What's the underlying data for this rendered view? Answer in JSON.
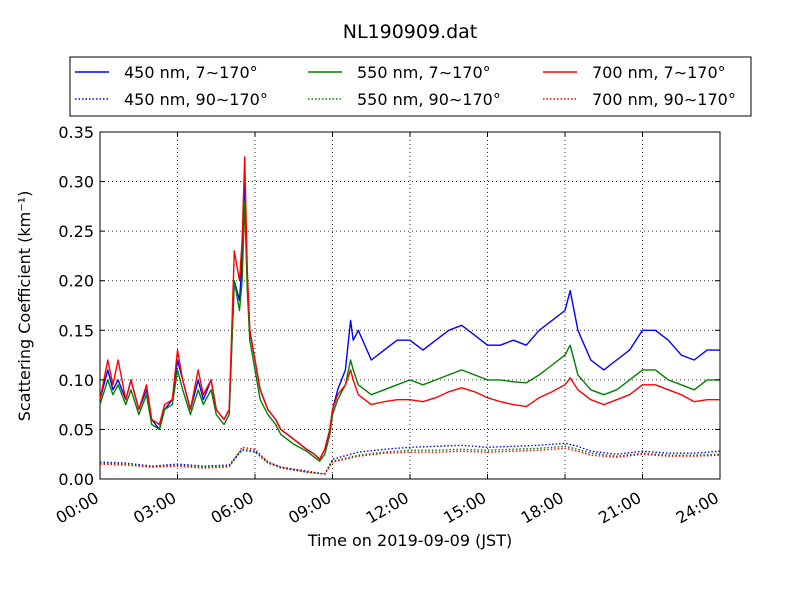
{
  "chart_data": {
    "type": "line",
    "title": "NL190909.dat",
    "xlabel": "Time on 2019-09-09 (JST)",
    "ylabel": "Scattering Coefficient (km⁻¹)",
    "xlim": [
      0,
      24
    ],
    "ylim": [
      0,
      0.35
    ],
    "grid": true,
    "legend_position": "top",
    "x_ticks": [
      {
        "value": 0,
        "label": "00:00"
      },
      {
        "value": 3,
        "label": "03:00"
      },
      {
        "value": 6,
        "label": "06:00"
      },
      {
        "value": 9,
        "label": "09:00"
      },
      {
        "value": 12,
        "label": "12:00"
      },
      {
        "value": 15,
        "label": "15:00"
      },
      {
        "value": 18,
        "label": "18:00"
      },
      {
        "value": 21,
        "label": "21:00"
      },
      {
        "value": 24,
        "label": "24:00"
      }
    ],
    "y_ticks": [
      {
        "value": 0.0,
        "label": "0.00"
      },
      {
        "value": 0.05,
        "label": "0.05"
      },
      {
        "value": 0.1,
        "label": "0.10"
      },
      {
        "value": 0.15,
        "label": "0.15"
      },
      {
        "value": 0.2,
        "label": "0.20"
      },
      {
        "value": 0.25,
        "label": "0.25"
      },
      {
        "value": 0.3,
        "label": "0.30"
      },
      {
        "value": 0.35,
        "label": "0.35"
      }
    ],
    "series": [
      {
        "name": "450 nm, 7∼170°",
        "color": "#0000ff",
        "style": "solid",
        "x": [
          0,
          0.3,
          0.5,
          0.7,
          1.0,
          1.2,
          1.5,
          1.8,
          2.0,
          2.3,
          2.5,
          2.8,
          3.0,
          3.2,
          3.5,
          3.8,
          4.0,
          4.3,
          4.5,
          4.8,
          5.0,
          5.2,
          5.4,
          5.5,
          5.6,
          5.7,
          5.8,
          6.0,
          6.2,
          6.5,
          6.8,
          7.0,
          7.5,
          8.0,
          8.3,
          8.5,
          8.7,
          8.9,
          9.0,
          9.2,
          9.5,
          9.7,
          9.8,
          10.0,
          10.5,
          11.0,
          11.5,
          12.0,
          12.5,
          13.0,
          13.5,
          14.0,
          14.5,
          15.0,
          15.5,
          16.0,
          16.5,
          17.0,
          17.5,
          18.0,
          18.2,
          18.5,
          19.0,
          19.5,
          20.0,
          20.5,
          21.0,
          21.5,
          22.0,
          22.5,
          23.0,
          23.5,
          24.0
        ],
        "y": [
          0.08,
          0.11,
          0.09,
          0.1,
          0.08,
          0.1,
          0.07,
          0.09,
          0.06,
          0.05,
          0.07,
          0.08,
          0.12,
          0.1,
          0.07,
          0.1,
          0.08,
          0.1,
          0.07,
          0.06,
          0.07,
          0.2,
          0.18,
          0.22,
          0.3,
          0.2,
          0.15,
          0.12,
          0.09,
          0.07,
          0.06,
          0.05,
          0.04,
          0.03,
          0.025,
          0.02,
          0.03,
          0.05,
          0.07,
          0.09,
          0.11,
          0.16,
          0.14,
          0.15,
          0.12,
          0.13,
          0.14,
          0.14,
          0.13,
          0.14,
          0.15,
          0.155,
          0.145,
          0.135,
          0.135,
          0.14,
          0.135,
          0.15,
          0.16,
          0.17,
          0.19,
          0.15,
          0.12,
          0.11,
          0.12,
          0.13,
          0.15,
          0.15,
          0.14,
          0.125,
          0.12,
          0.13,
          0.13
        ]
      },
      {
        "name": "450 nm, 90∼170°",
        "color": "#0000ff",
        "style": "dotted",
        "x": [
          0,
          1,
          2,
          3,
          4,
          5,
          5.5,
          6,
          6.5,
          7,
          8,
          8.7,
          9,
          10,
          11,
          12,
          13,
          14,
          15,
          16,
          17,
          18,
          18.5,
          19,
          20,
          21,
          22,
          23,
          24
        ],
        "y": [
          0.017,
          0.016,
          0.013,
          0.015,
          0.013,
          0.014,
          0.03,
          0.028,
          0.017,
          0.012,
          0.008,
          0.005,
          0.02,
          0.027,
          0.03,
          0.032,
          0.033,
          0.034,
          0.032,
          0.033,
          0.034,
          0.036,
          0.033,
          0.028,
          0.025,
          0.028,
          0.026,
          0.026,
          0.028
        ]
      },
      {
        "name": "550 nm, 7∼170°",
        "color": "#008000",
        "style": "solid",
        "x": [
          0,
          0.3,
          0.5,
          0.7,
          1.0,
          1.2,
          1.5,
          1.8,
          2.0,
          2.3,
          2.5,
          2.8,
          3.0,
          3.2,
          3.5,
          3.8,
          4.0,
          4.3,
          4.5,
          4.8,
          5.0,
          5.2,
          5.4,
          5.5,
          5.6,
          5.7,
          5.8,
          6.0,
          6.2,
          6.5,
          6.8,
          7.0,
          7.5,
          8.0,
          8.3,
          8.5,
          8.7,
          8.9,
          9.0,
          9.2,
          9.5,
          9.7,
          9.8,
          10.0,
          10.5,
          11.0,
          11.5,
          12.0,
          12.5,
          13.0,
          13.5,
          14.0,
          14.5,
          15.0,
          15.5,
          16.0,
          16.5,
          17.0,
          17.5,
          18.0,
          18.2,
          18.5,
          19.0,
          19.5,
          20.0,
          20.5,
          21.0,
          21.5,
          22.0,
          22.5,
          23.0,
          23.5,
          24.0
        ],
        "y": [
          0.075,
          0.1,
          0.085,
          0.095,
          0.075,
          0.09,
          0.065,
          0.085,
          0.055,
          0.05,
          0.07,
          0.075,
          0.11,
          0.09,
          0.065,
          0.09,
          0.075,
          0.09,
          0.065,
          0.055,
          0.065,
          0.2,
          0.17,
          0.2,
          0.28,
          0.19,
          0.14,
          0.11,
          0.08,
          0.065,
          0.055,
          0.045,
          0.035,
          0.028,
          0.022,
          0.018,
          0.025,
          0.045,
          0.065,
          0.08,
          0.095,
          0.12,
          0.11,
          0.095,
          0.085,
          0.09,
          0.095,
          0.1,
          0.095,
          0.1,
          0.105,
          0.11,
          0.105,
          0.1,
          0.1,
          0.098,
          0.097,
          0.105,
          0.115,
          0.125,
          0.135,
          0.105,
          0.09,
          0.085,
          0.09,
          0.1,
          0.11,
          0.11,
          0.1,
          0.095,
          0.09,
          0.1,
          0.1
        ]
      },
      {
        "name": "550 nm, 90∼170°",
        "color": "#008000",
        "style": "dotted",
        "x": [
          0,
          1,
          2,
          3,
          4,
          5,
          5.5,
          6,
          6.5,
          7,
          8,
          8.7,
          9,
          10,
          11,
          12,
          13,
          14,
          15,
          16,
          17,
          18,
          18.5,
          19,
          20,
          21,
          22,
          23,
          24
        ],
        "y": [
          0.016,
          0.015,
          0.012,
          0.014,
          0.012,
          0.013,
          0.029,
          0.027,
          0.016,
          0.011,
          0.007,
          0.005,
          0.018,
          0.024,
          0.027,
          0.029,
          0.029,
          0.03,
          0.029,
          0.03,
          0.031,
          0.033,
          0.03,
          0.026,
          0.023,
          0.026,
          0.024,
          0.024,
          0.025
        ]
      },
      {
        "name": "700 nm, 7∼170°",
        "color": "#ff0000",
        "style": "solid",
        "x": [
          0,
          0.3,
          0.5,
          0.7,
          1.0,
          1.2,
          1.5,
          1.8,
          2.0,
          2.3,
          2.5,
          2.8,
          3.0,
          3.2,
          3.5,
          3.8,
          4.0,
          4.3,
          4.5,
          4.8,
          5.0,
          5.2,
          5.4,
          5.5,
          5.6,
          5.7,
          5.8,
          6.0,
          6.2,
          6.5,
          6.8,
          7.0,
          7.5,
          8.0,
          8.3,
          8.5,
          8.7,
          8.9,
          9.0,
          9.2,
          9.5,
          9.7,
          9.8,
          10.0,
          10.5,
          11.0,
          11.5,
          12.0,
          12.5,
          13.0,
          13.5,
          14.0,
          14.5,
          15.0,
          15.5,
          16.0,
          16.5,
          17.0,
          17.5,
          18.0,
          18.2,
          18.5,
          19.0,
          19.5,
          20.0,
          20.5,
          21.0,
          21.5,
          22.0,
          22.5,
          23.0,
          23.5,
          24.0
        ],
        "y": [
          0.08,
          0.12,
          0.095,
          0.12,
          0.08,
          0.1,
          0.07,
          0.095,
          0.06,
          0.055,
          0.075,
          0.08,
          0.13,
          0.1,
          0.07,
          0.11,
          0.085,
          0.1,
          0.07,
          0.06,
          0.07,
          0.23,
          0.2,
          0.24,
          0.325,
          0.21,
          0.15,
          0.12,
          0.09,
          0.07,
          0.06,
          0.05,
          0.04,
          0.03,
          0.025,
          0.02,
          0.03,
          0.05,
          0.07,
          0.085,
          0.095,
          0.11,
          0.1,
          0.085,
          0.075,
          0.078,
          0.08,
          0.08,
          0.078,
          0.082,
          0.088,
          0.092,
          0.088,
          0.082,
          0.078,
          0.075,
          0.073,
          0.082,
          0.088,
          0.095,
          0.102,
          0.09,
          0.08,
          0.075,
          0.08,
          0.085,
          0.095,
          0.095,
          0.09,
          0.085,
          0.078,
          0.08,
          0.08
        ]
      },
      {
        "name": "700 nm, 90∼170°",
        "color": "#ff0000",
        "style": "dotted",
        "x": [
          0,
          1,
          2,
          3,
          4,
          5,
          5.5,
          6,
          6.5,
          7,
          8,
          8.7,
          9,
          10,
          11,
          12,
          13,
          14,
          15,
          16,
          17,
          18,
          18.5,
          19,
          20,
          21,
          22,
          23,
          24
        ],
        "y": [
          0.015,
          0.014,
          0.012,
          0.013,
          0.011,
          0.012,
          0.032,
          0.03,
          0.017,
          0.012,
          0.007,
          0.005,
          0.017,
          0.023,
          0.026,
          0.027,
          0.027,
          0.028,
          0.027,
          0.028,
          0.029,
          0.031,
          0.028,
          0.024,
          0.022,
          0.025,
          0.023,
          0.023,
          0.024
        ]
      }
    ]
  }
}
